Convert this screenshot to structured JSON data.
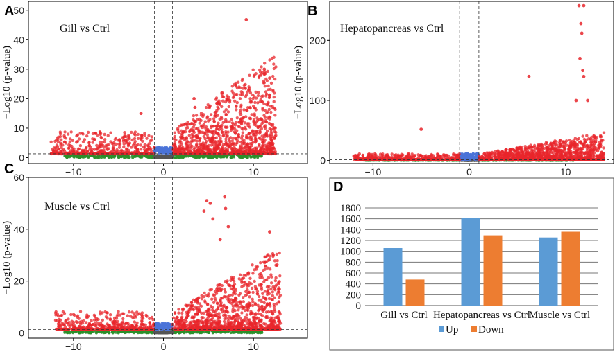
{
  "chart_data": [
    {
      "type": "scatter",
      "panel": "A",
      "title": "Gill vs Ctrl",
      "xlabel": "",
      "ylabel": "−Log10 (p-value)",
      "xlim": [
        -15,
        16
      ],
      "ylim": [
        -2,
        53
      ],
      "xticks": [
        -10,
        0,
        10
      ],
      "yticks": [
        0,
        10,
        20,
        30,
        40,
        50
      ],
      "fc_threshold": 1,
      "p_threshold": 1.3,
      "series_colors": {
        "up_down": "#e8262b",
        "ns_fc": "#2a8f2a",
        "ns_p": "#4a73d8",
        "ns": "#555555"
      },
      "highlight_points": [
        [
          9.2,
          46.8
        ],
        [
          11.2,
          30
        ],
        [
          10.8,
          28
        ],
        [
          11.8,
          27
        ],
        [
          6.5,
          22
        ],
        [
          3.4,
          20
        ],
        [
          -2.5,
          15
        ],
        [
          3.5,
          17
        ]
      ],
      "max_pos_x": 12.5,
      "max_neg_x": -12.5,
      "peak": 30
    },
    {
      "type": "scatter",
      "panel": "B",
      "title": "Hepatopancreas vs Ctrl",
      "xlabel": "",
      "ylabel": "−Log10 (p-value)",
      "xlim": [
        -14.5,
        15
      ],
      "ylim": [
        -5,
        265
      ],
      "xticks": [
        -10,
        0,
        10
      ],
      "yticks": [
        0,
        100,
        200
      ],
      "fc_threshold": 1,
      "p_threshold": 1.3,
      "series_colors": {
        "up_down": "#e8262b",
        "ns_fc": "#2a8f2a",
        "ns_p": "#4a73d8",
        "ns": "#555555"
      },
      "highlight_points": [
        [
          11.4,
          258
        ],
        [
          11.9,
          258
        ],
        [
          11.6,
          228
        ],
        [
          11.7,
          212
        ],
        [
          11.5,
          170
        ],
        [
          11.8,
          150
        ],
        [
          6.2,
          140
        ],
        [
          11.9,
          140
        ],
        [
          11.1,
          100
        ],
        [
          12.3,
          100
        ],
        [
          -5,
          52
        ]
      ],
      "max_pos_x": 14,
      "max_neg_x": -12,
      "peak": 40
    },
    {
      "type": "scatter",
      "panel": "C",
      "title": "Muscle vs Ctrl",
      "xlabel": "",
      "ylabel": "−Log10 (p-value)",
      "xlim": [
        -15,
        16
      ],
      "ylim": [
        -2,
        60
      ],
      "xticks": [
        -10,
        0,
        10
      ],
      "yticks": [
        0,
        20,
        40,
        60
      ],
      "fc_threshold": 1,
      "p_threshold": 1.3,
      "series_colors": {
        "up_down": "#e8262b",
        "ns_fc": "#2a8f2a",
        "ns_p": "#4a73d8",
        "ns": "#555555"
      },
      "highlight_points": [
        [
          4.8,
          51
        ],
        [
          5.2,
          50
        ],
        [
          6.8,
          52.5
        ],
        [
          6.9,
          48
        ],
        [
          4.5,
          47
        ],
        [
          5.5,
          44
        ],
        [
          11.8,
          39
        ],
        [
          12.2,
          30
        ],
        [
          7.2,
          41
        ],
        [
          6.3,
          36
        ]
      ],
      "max_pos_x": 13,
      "max_neg_x": -12,
      "peak": 28
    },
    {
      "type": "bar",
      "panel": "D",
      "title": "",
      "categories": [
        "Gill vs Ctrl",
        "Hepatopancreas vs Ctrl",
        "Muscle vs Ctrl"
      ],
      "series": [
        {
          "name": "Up",
          "values": [
            1060,
            1610,
            1255
          ],
          "color": "#5b9bd5"
        },
        {
          "name": "Down",
          "values": [
            480,
            1295,
            1360
          ],
          "color": "#ed7d31"
        }
      ],
      "ylim": [
        0,
        1800
      ],
      "yticks": [
        0,
        200,
        400,
        600,
        800,
        1000,
        1200,
        1400,
        1600,
        1800
      ],
      "legend": "bottom"
    }
  ]
}
